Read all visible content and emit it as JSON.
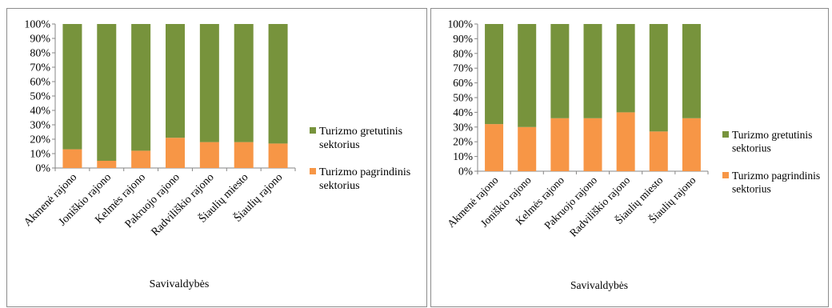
{
  "chart_data": [
    {
      "type": "bar",
      "stacked": true,
      "percent_stacked": true,
      "categories": [
        "Akmenė rajono",
        "Joniškio rajono",
        "Kelmės rajono",
        "Pakruojo rajono",
        "Radviliškio rajono",
        "Šiaulių miesto",
        "Šiaulių rajono"
      ],
      "series": [
        {
          "name": "Turizmo pagrindinis sektorius",
          "color": "#f79646",
          "values": [
            13,
            5,
            12,
            21,
            18,
            18,
            17
          ]
        },
        {
          "name": "Turizmo gretutinis sektorius",
          "color": "#77933c",
          "values": [
            87,
            95,
            88,
            79,
            82,
            82,
            83
          ]
        }
      ],
      "xlabel": "Savivaldybės",
      "ylabel": "",
      "ylim": [
        0,
        100
      ],
      "yticks": [
        "0%",
        "10%",
        "20%",
        "30%",
        "40%",
        "50%",
        "60%",
        "70%",
        "80%",
        "90%",
        "100%"
      ],
      "grid": false,
      "legend": "right",
      "legend_order": [
        "Turizmo gretutinis sektorius",
        "Turizmo pagrindinis sektorius"
      ]
    },
    {
      "type": "bar",
      "stacked": true,
      "percent_stacked": true,
      "categories": [
        "Akmenė rajono",
        "Joniškio rajono",
        "Kelmės rajono",
        "Pakruojo rajono",
        "Radviliškio rajono",
        "Šiaulių miesto",
        "Šiaulių rajono"
      ],
      "series": [
        {
          "name": "Turizmo pagrindinis sektorius",
          "color": "#f79646",
          "values": [
            32,
            30,
            36,
            36,
            40,
            27,
            36
          ]
        },
        {
          "name": "Turizmo gretutinis sektorius",
          "color": "#77933c",
          "values": [
            68,
            70,
            64,
            64,
            60,
            73,
            64
          ]
        }
      ],
      "xlabel": "Savivaldybės",
      "ylabel": "",
      "ylim": [
        0,
        100
      ],
      "yticks": [
        "0%",
        "10%",
        "20%",
        "30%",
        "40%",
        "50%",
        "60%",
        "70%",
        "80%",
        "90%",
        "100%"
      ],
      "grid": false,
      "legend": "right",
      "legend_order": [
        "Turizmo gretutinis sektorius",
        "Turizmo pagrindinis sektorius"
      ]
    }
  ]
}
